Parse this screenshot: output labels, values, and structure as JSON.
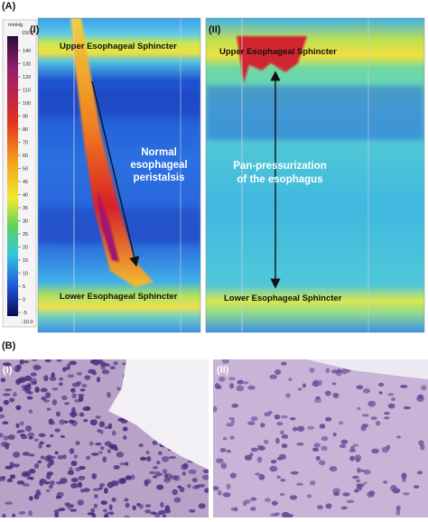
{
  "panel_a": {
    "label": "(A)",
    "colorbar": {
      "unit": "mmHg",
      "max": "150.0",
      "min": "-10.0",
      "ticks": [
        140,
        130,
        120,
        110,
        100,
        90,
        80,
        70,
        60,
        50,
        45,
        40,
        35,
        30,
        25,
        20,
        15,
        10,
        5,
        0,
        -5
      ]
    },
    "plot_1": {
      "label": "(I)",
      "upper": "Upper Esophageal Sphincter",
      "lower": "Lower Esophageal Sphincter",
      "annotation": [
        "Normal",
        "esophageal",
        "peristalsis"
      ]
    },
    "plot_2": {
      "label": "(II)",
      "upper": "Upper Esophageal Sphincter",
      "lower": "Lower Esophageal Sphincter",
      "annotation": [
        "Pan-pressurization",
        "of the esophagus"
      ]
    }
  },
  "panel_b": {
    "label": "(B)",
    "image_1": {
      "label": "(I)"
    },
    "image_2": {
      "label": "(II)"
    }
  }
}
